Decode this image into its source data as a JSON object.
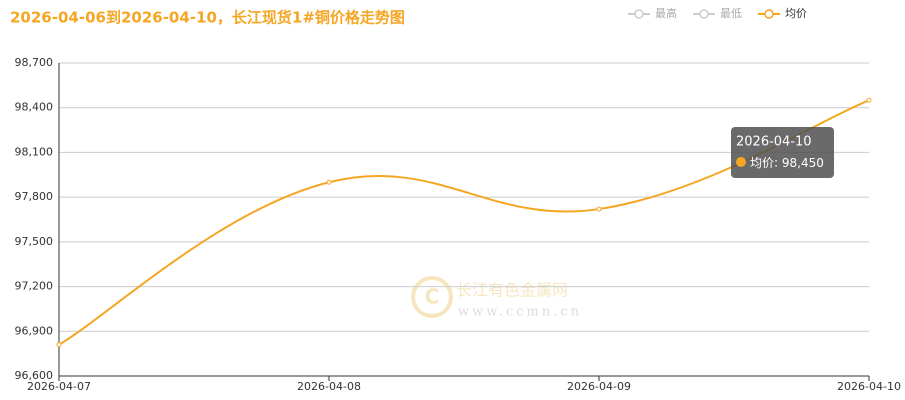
{
  "chart_data": {
    "type": "line",
    "title": "2026-04-06到2026-04-10，长江现货1#铜价格走势图",
    "categories": [
      "2026-04-07",
      "2026-04-08",
      "2026-04-09",
      "2026-04-10"
    ],
    "legend": [
      {
        "name": "最高",
        "active": false
      },
      {
        "name": "最低",
        "active": false
      },
      {
        "name": "均价",
        "active": true
      }
    ],
    "series": [
      {
        "name": "均价",
        "color": "#f5a623",
        "values": [
          96810,
          97900,
          97720,
          98450
        ],
        "value_labels": [
          null,
          null,
          null,
          "98,450"
        ]
      }
    ],
    "ylim": [
      96600,
      98700
    ],
    "yticks": [
      {
        "value": 96600,
        "label": "96,600"
      },
      {
        "value": 96900,
        "label": "96,900"
      },
      {
        "value": 97200,
        "label": "97,200"
      },
      {
        "value": 97500,
        "label": "97,500"
      },
      {
        "value": 97800,
        "label": "97,800"
      },
      {
        "value": 98100,
        "label": "98,100"
      },
      {
        "value": 98400,
        "label": "98,400"
      },
      {
        "value": 98700,
        "label": "98,700"
      }
    ],
    "grid": true,
    "watermark": {
      "name": "长江有色金属网",
      "url": "www.ccmn.cn"
    }
  }
}
